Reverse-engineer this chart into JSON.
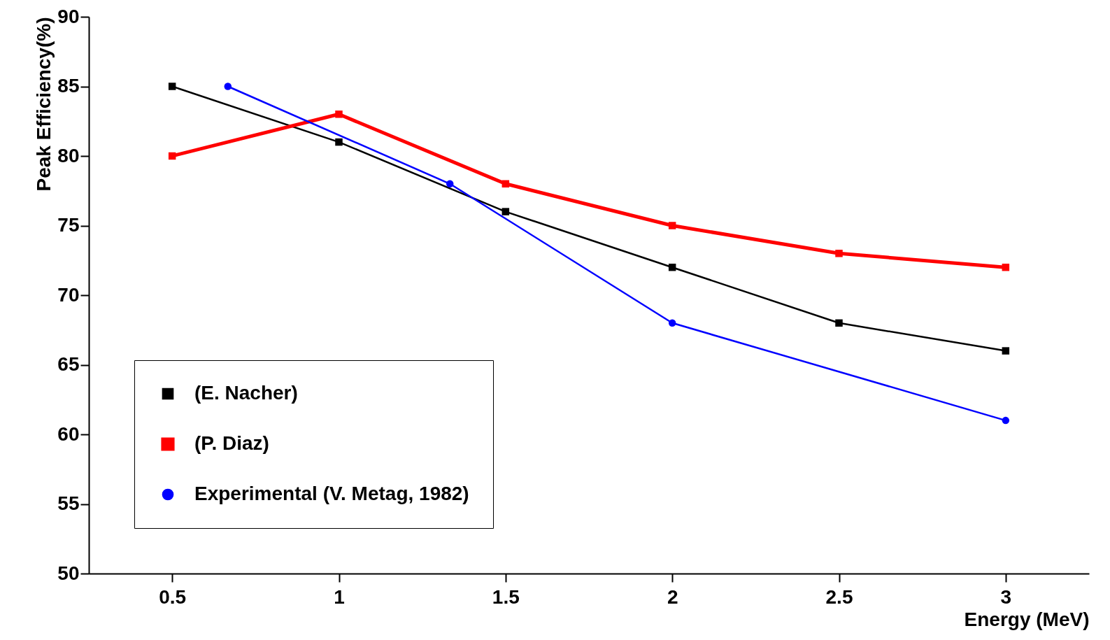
{
  "chart_data": {
    "type": "line",
    "xlabel": "Energy (MeV)",
    "ylabel": "Peak Efficiency(%)",
    "xlim": [
      0.25,
      3.25
    ],
    "xticks": [
      0.5,
      1,
      1.5,
      2,
      2.5,
      3
    ],
    "ylim": [
      50,
      90
    ],
    "yticks": [
      50,
      55,
      60,
      65,
      70,
      75,
      80,
      85,
      90
    ],
    "grid": false,
    "legend": "bottom left",
    "series": [
      {
        "name": "(E. Nacher)",
        "color": "#000000",
        "marker": "square",
        "x": [
          0.5,
          1,
          1.5,
          2,
          2.5,
          3
        ],
        "values": [
          85,
          81,
          76,
          72,
          68,
          66
        ]
      },
      {
        "name": "(P. Diaz)",
        "color": "#ff0000",
        "marker": "square",
        "x": [
          0.5,
          1,
          1.5,
          2,
          2.5,
          3
        ],
        "values": [
          80,
          83,
          78,
          75,
          73,
          72
        ]
      },
      {
        "name": "Experimental (V. Metag, 1982)",
        "color": "#0000ff",
        "marker": "circle",
        "x": [
          0.667,
          1.333,
          2,
          3
        ],
        "values": [
          85,
          78,
          68,
          61
        ]
      }
    ]
  }
}
